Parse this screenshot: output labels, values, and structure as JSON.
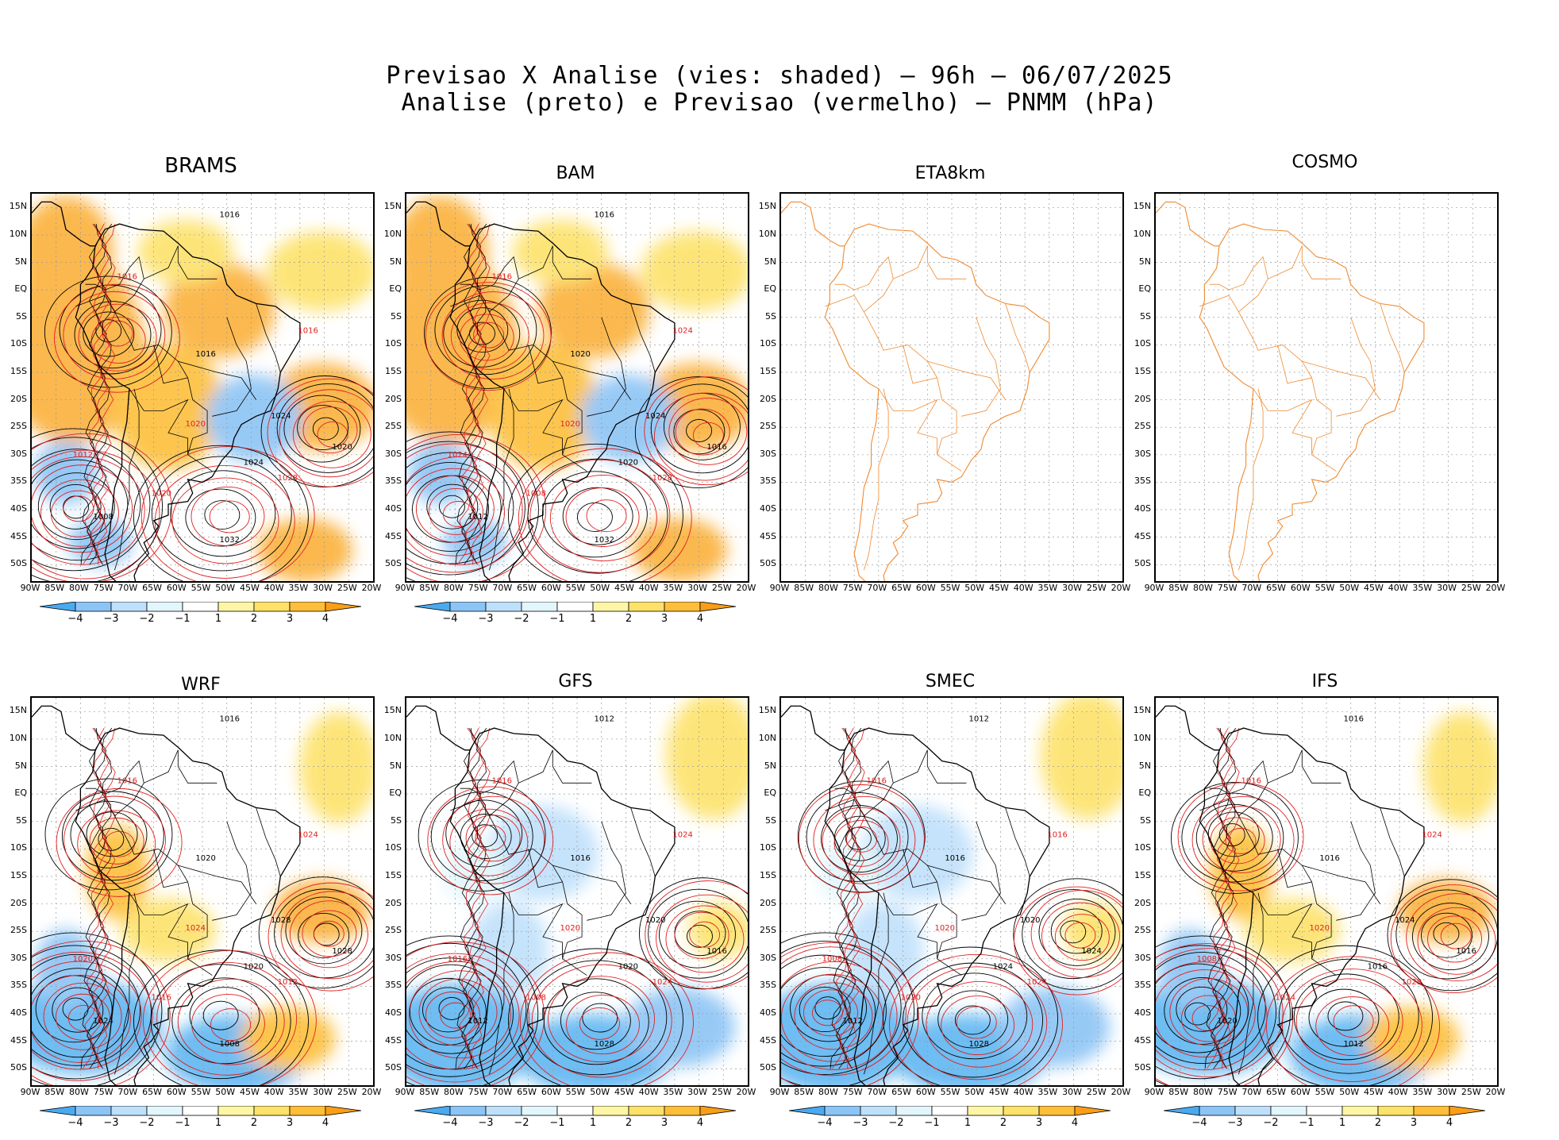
{
  "title": {
    "line1": "Previsao X Analise (vies: shaded) – 96h – 06/07/2025",
    "line2": "Analise (preto) e Previsao (vermelho) – PNMM (hPa)"
  },
  "y_ticks": [
    "15N",
    "10N",
    "5N",
    "EQ",
    "5S",
    "10S",
    "15S",
    "20S",
    "25S",
    "30S",
    "35S",
    "40S",
    "45S",
    "50S"
  ],
  "x_ticks": [
    "90W",
    "85W",
    "80W",
    "75W",
    "70W",
    "65W",
    "60W",
    "55W",
    "50W",
    "45W",
    "40W",
    "35W",
    "30W",
    "25W",
    "20W"
  ],
  "colorbar": {
    "labels": [
      "−4",
      "−3",
      "−2",
      "−1",
      "1",
      "2",
      "3",
      "4"
    ],
    "colors": [
      "#4aaaf0",
      "#8cc4f5",
      "#bfe0fb",
      "#e2f6fb",
      "#ffffff",
      "#fdf6a6",
      "#fde26a",
      "#fdbf3a",
      "#fb9e16"
    ]
  },
  "colors": {
    "analysis": "#000000",
    "forecast": "#e02020",
    "coast_blank": "#f08a30",
    "bias_positive": "#fbb13a",
    "bias_negative": "#5fb6f2"
  },
  "panels": [
    {
      "name": "BRAMS",
      "bias": "positive",
      "has_data": true,
      "labels": [
        "1016",
        "1016",
        "1016",
        "1020",
        "1024",
        "1028",
        "1032",
        "1012",
        "1008",
        "1020",
        "1024",
        "1016",
        "1020"
      ]
    },
    {
      "name": "BAM",
      "bias": "positive",
      "has_data": true,
      "labels": [
        "1016",
        "1016",
        "1020",
        "1020",
        "1024",
        "1028",
        "1032",
        "1024",
        "1012",
        "1008",
        "1020",
        "1024",
        "1016"
      ]
    },
    {
      "name": "ETA8km",
      "bias": "none",
      "has_data": false,
      "labels": []
    },
    {
      "name": "COSMO",
      "bias": "none",
      "has_data": false,
      "labels": []
    },
    {
      "name": "WRF",
      "bias": "mixed",
      "has_data": true,
      "labels": [
        "1016",
        "1016",
        "1020",
        "1024",
        "1028",
        "1012",
        "1008",
        "1020",
        "1024",
        "1016",
        "1020",
        "1024",
        "1028"
      ]
    },
    {
      "name": "GFS",
      "bias": "negative",
      "has_data": true,
      "labels": [
        "1012",
        "1016",
        "1016",
        "1020",
        "1020",
        "1024",
        "1028",
        "1016",
        "1012",
        "1008",
        "1020",
        "1024",
        "1016"
      ]
    },
    {
      "name": "SMEC",
      "bias": "negative",
      "has_data": true,
      "labels": [
        "1012",
        "1016",
        "1016",
        "1020",
        "1020",
        "1024",
        "1028",
        "1008",
        "1012",
        "1020",
        "1024",
        "1016",
        "1024"
      ]
    },
    {
      "name": "IFS",
      "bias": "mixed",
      "has_data": true,
      "labels": [
        "1016",
        "1016",
        "1016",
        "1020",
        "1024",
        "1028",
        "1012",
        "1008",
        "1020",
        "1024",
        "1016",
        "1024",
        "1016"
      ]
    }
  ]
}
